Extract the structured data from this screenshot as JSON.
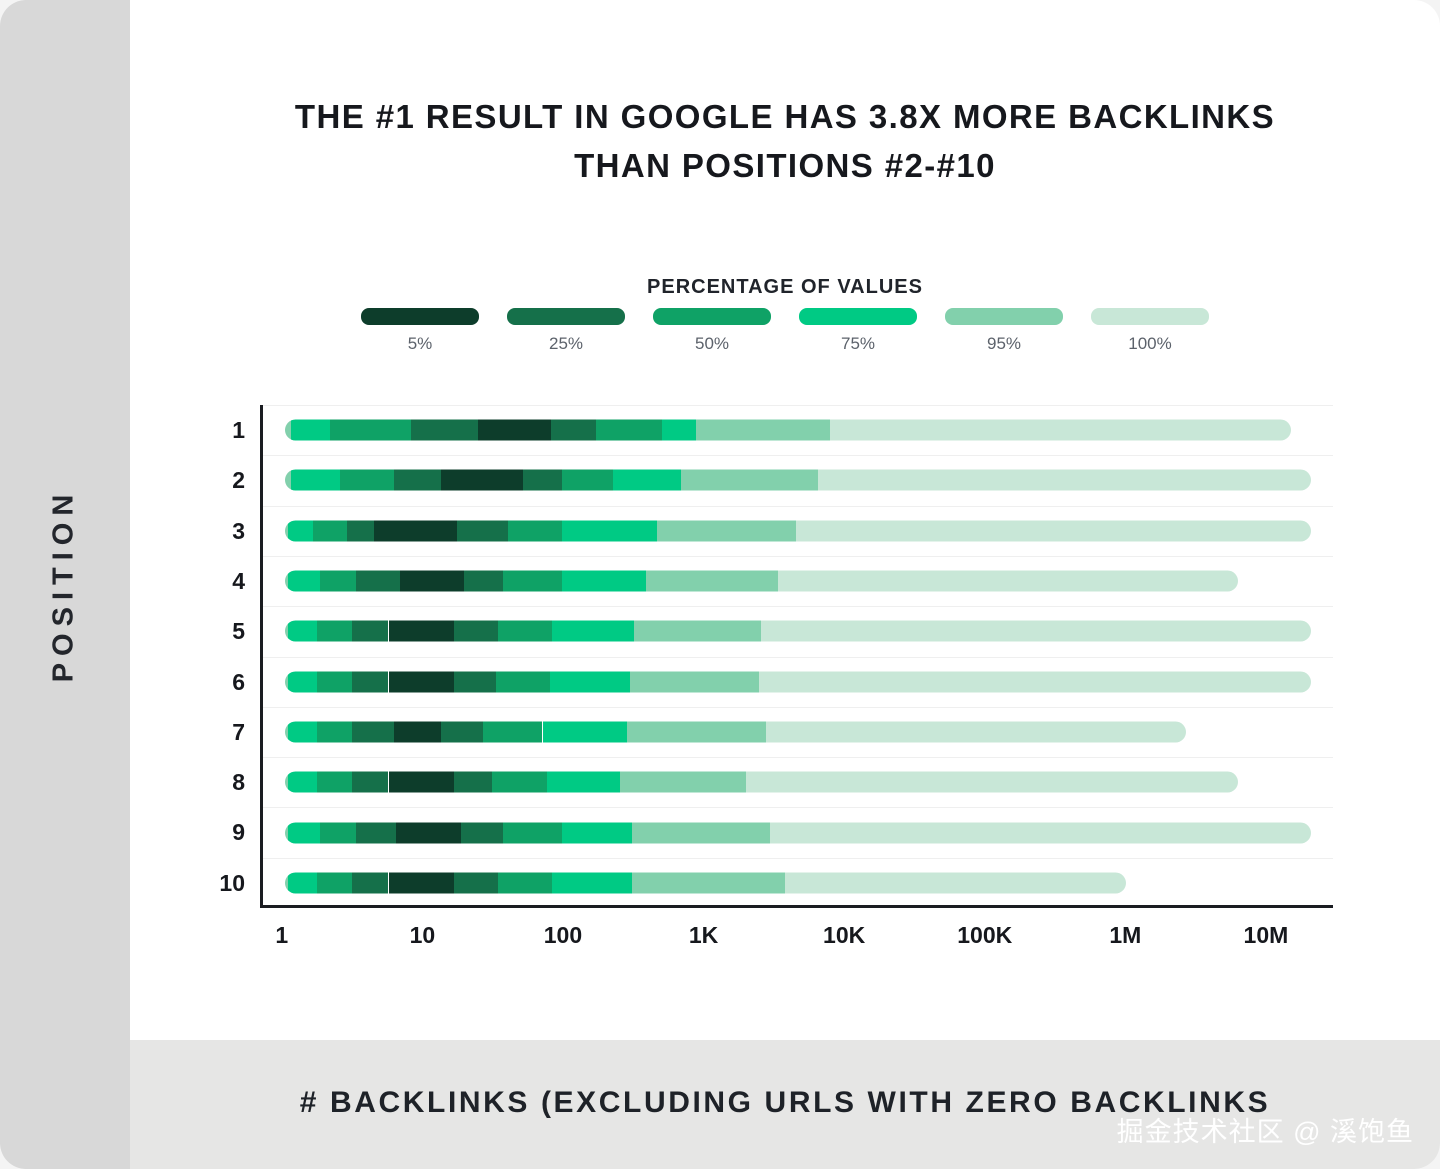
{
  "page": {
    "left_rail_label": "POSITION",
    "footer_label": "# BACKLINKS (EXCLUDING URLS WITH ZERO BACKLINKS",
    "watermark": "掘金技术社区 @ 溪饱鱼"
  },
  "chart_data": {
    "type": "bar",
    "variant": "horizontal-percentile-range-bars",
    "title_line1": "THE #1 RESULT IN GOOGLE HAS 3.8X MORE BACKLINKS",
    "title_line2": "THAN POSITIONS #2-#10",
    "legend_title": "PERCENTAGE OF VALUES",
    "legend": [
      {
        "label": "5%",
        "color": "#0d3d2b"
      },
      {
        "label": "25%",
        "color": "#15704a"
      },
      {
        "label": "50%",
        "color": "#0fa266"
      },
      {
        "label": "75%",
        "color": "#00ca84"
      },
      {
        "label": "95%",
        "color": "#82d0ac"
      },
      {
        "label": "100%",
        "color": "#c8e7d7"
      }
    ],
    "xlabel": "# BACKLINKS (EXCLUDING URLS WITH ZERO BACKLINKS",
    "ylabel": "POSITION",
    "x_scale": "log",
    "x_domain": [
      0.7,
      30000000
    ],
    "x_ticks": [
      "1",
      "10",
      "100",
      "1K",
      "10K",
      "100K",
      "1M",
      "10M"
    ],
    "x_tick_values": [
      1,
      10,
      100,
      1000,
      10000,
      100000,
      1000000,
      10000000
    ],
    "grid": "subtle-horizontal",
    "legend_position": "top-center",
    "edge_meaning": [
      "range_min",
      "p95_low",
      "p75_low",
      "p50_low",
      "p25_low",
      "p5_low",
      "p5_high",
      "p25_high",
      "p50_high",
      "p75_high",
      "p95_high",
      "range_max"
    ],
    "positions": [
      {
        "label": "1",
        "percentile_edges": [
          1,
          1,
          1.1,
          2.1,
          8,
          24,
          79,
          165,
          490,
          860,
          7800,
          15000000
        ]
      },
      {
        "label": "2",
        "percentile_edges": [
          1,
          1,
          1.1,
          2.5,
          6,
          13,
          50,
          95,
          220,
          675,
          6400,
          21000000
        ]
      },
      {
        "label": "3",
        "percentile_edges": [
          1,
          1,
          1.05,
          1.6,
          2.8,
          4.3,
          17,
          39,
          95,
          450,
          4400,
          21000000
        ]
      },
      {
        "label": "4",
        "percentile_edges": [
          1,
          1,
          1.05,
          1.8,
          3.2,
          6.6,
          19,
          36,
          95,
          380,
          3300,
          6300000
        ]
      },
      {
        "label": "5",
        "percentile_edges": [
          1,
          1,
          1.05,
          1.7,
          3,
          5.5,
          16,
          33,
          81,
          310,
          2500,
          21000000
        ]
      },
      {
        "label": "6",
        "percentile_edges": [
          1,
          1,
          1.05,
          1.7,
          3,
          5.5,
          16,
          32,
          78,
          290,
          2400,
          21000000
        ]
      },
      {
        "label": "7",
        "percentile_edges": [
          1,
          1,
          1.05,
          1.7,
          3,
          6,
          13,
          26,
          69,
          275,
          2700,
          2700000
        ]
      },
      {
        "label": "8",
        "percentile_edges": [
          1,
          1,
          1.05,
          1.7,
          3,
          5.5,
          16,
          30,
          74,
          245,
          1950,
          6300000
        ]
      },
      {
        "label": "9",
        "percentile_edges": [
          1,
          1,
          1.05,
          1.8,
          3.2,
          6.2,
          18,
          36,
          95,
          300,
          2900,
          21000000
        ]
      },
      {
        "label": "10",
        "percentile_edges": [
          1,
          1,
          1.05,
          1.7,
          3,
          5.5,
          16,
          33,
          81,
          300,
          3700,
          1000000
        ]
      }
    ]
  }
}
